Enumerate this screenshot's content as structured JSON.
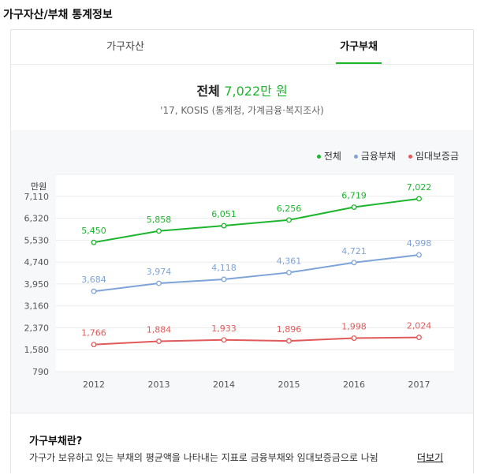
{
  "page": {
    "title": "가구자산/부채 통계정보"
  },
  "tabs": [
    {
      "label": "가구자산",
      "active": false
    },
    {
      "label": "가구부채",
      "active": true
    }
  ],
  "summary": {
    "label": "전체",
    "value": "7,022만 원",
    "source": "'17, KOSIS (통계청, 가계금융·복지조사)"
  },
  "definition": {
    "title": "가구부채란?",
    "text": "가구가 보유하고 있는 부채의 평균액을 나타내는 지표로 금융부채와 임대보증금으로 나뉨",
    "more_label": "더보기"
  },
  "chart_data": {
    "type": "line",
    "ylabel": "만원",
    "x": [
      "2012",
      "2013",
      "2014",
      "2015",
      "2016",
      "2017"
    ],
    "yticks": [
      "790",
      "1,580",
      "2,370",
      "3,160",
      "3,950",
      "4,740",
      "5,530",
      "6,320",
      "7,110"
    ],
    "ylim": [
      790,
      7900
    ],
    "grid": true,
    "legend_position": "top-right",
    "series": [
      {
        "name": "전체",
        "color": "#1db52e",
        "values": [
          5450,
          5858,
          6051,
          6256,
          6719,
          7022
        ],
        "labels": [
          "5,450",
          "5,858",
          "6,051",
          "6,256",
          "6,719",
          "7,022"
        ]
      },
      {
        "name": "금융부채",
        "color": "#7ea3d8",
        "values": [
          3684,
          3974,
          4118,
          4361,
          4721,
          4998
        ],
        "labels": [
          "3,684",
          "3,974",
          "4,118",
          "4,361",
          "4,721",
          "4,998"
        ]
      },
      {
        "name": "임대보증금",
        "color": "#e05a5a",
        "values": [
          1766,
          1884,
          1933,
          1896,
          1998,
          2024
        ],
        "labels": [
          "1,766",
          "1,884",
          "1,933",
          "1,896",
          "1,998",
          "2,024"
        ]
      }
    ]
  }
}
